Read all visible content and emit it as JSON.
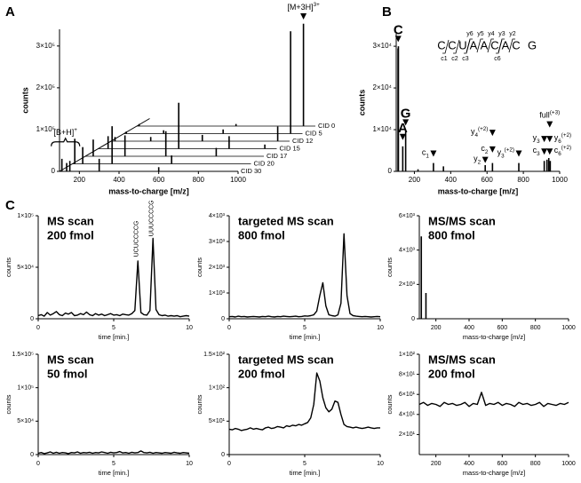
{
  "chart_data": [
    {
      "type": "waterfall",
      "panel": "A",
      "ylabel": "counts",
      "xlabel": "mass-to-charge [m/z]",
      "color": "#000000",
      "xlim": [
        100,
        1000
      ],
      "xticks": [
        200,
        400,
        600,
        800,
        1000
      ],
      "ylim": [
        0,
        340000
      ],
      "yticks": [
        0,
        {
          "value": 100000,
          "label": "1×10⁵"
        },
        {
          "value": 200000,
          "label": "2×10⁵"
        },
        {
          "value": 300000,
          "label": "3×10⁵"
        }
      ],
      "series": [
        {
          "name": "CID 0",
          "x": [
            112,
            600,
            940
          ],
          "values": [
            5000,
            5000,
            245000
          ],
          "annotation": {
            "text": "[M+3H]",
            "sup": "3+",
            "x": 940,
            "y": 255000,
            "marker": "triangle"
          }
        },
        {
          "name": "CID 5",
          "x": [
            112,
            300,
            600,
            940
          ],
          "values": [
            5000,
            8000,
            10000,
            245000
          ]
        },
        {
          "name": "CID 12",
          "x": [
            120,
            300,
            560,
            940
          ],
          "values": [
            10000,
            10000,
            15000,
            35000
          ]
        },
        {
          "name": "CID 15",
          "x": [
            150,
            506,
            760,
            940
          ],
          "values": [
            30000,
            110000,
            30000,
            10000
          ]
        },
        {
          "name": "CID 17",
          "x": [
            140,
            300,
            506,
            760
          ],
          "values": [
            40000,
            50000,
            60000,
            20000
          ]
        },
        {
          "name": "CID 20",
          "x": [
            112,
            152,
            300,
            600
          ],
          "values": [
            60000,
            40000,
            90000,
            20000
          ]
        },
        {
          "name": "CID 30",
          "x": [
            112,
            136,
            152,
            300,
            600
          ],
          "values": [
            30000,
            20000,
            25000,
            30000,
            10000
          ],
          "annotation": {
            "text": "[B+H]",
            "sup": "+",
            "x": 130,
            "y": 60000,
            "marker": "brace"
          }
        }
      ]
    },
    {
      "type": "spectrum",
      "panel": "B",
      "ylabel": "counts",
      "xlabel": "mass-to-charge [m/z]",
      "color": "#000000",
      "xlim": [
        100,
        1000
      ],
      "xticks": [
        200,
        400,
        600,
        800,
        1000
      ],
      "ylim": [
        0,
        33000
      ],
      "yticks": [
        0,
        {
          "value": 10000,
          "label": "1×10⁴"
        },
        {
          "value": 20000,
          "label": "2×10⁴"
        },
        {
          "value": 30000,
          "label": "3×10⁴"
        }
      ],
      "x": [
        110,
        112,
        136,
        152,
        220,
        305,
        360,
        590,
        630,
        775,
        915,
        930,
        940,
        948
      ],
      "values": [
        29500,
        30000,
        6000,
        9500,
        500,
        2000,
        1200,
        1500,
        2000,
        2000,
        2500,
        2800,
        3200,
        2500
      ],
      "annotations": [
        {
          "text": "C",
          "x": 111,
          "y": 31000
        },
        {
          "text": "G",
          "x": 152,
          "y": 11000
        },
        {
          "text": "A",
          "x": 136,
          "y": 7500
        },
        {
          "text": "c",
          "sub": "1",
          "x": 305,
          "y": 3500
        },
        {
          "text": "y",
          "sub": "2",
          "x": 590,
          "y": 2000
        },
        {
          "text": "c",
          "sub": "2",
          "x": 630,
          "y": 4500
        },
        {
          "text": "y",
          "sub": "4",
          "sup": "(+2)",
          "x": 630,
          "y": 8500
        },
        {
          "text": "y",
          "sub": "3",
          "sup": "(+2)",
          "x": 775,
          "y": 3500
        },
        {
          "text": "y",
          "sub": "3",
          "x": 915,
          "y": 7000
        },
        {
          "text": "c",
          "sub": "3",
          "x": 915,
          "y": 4000
        },
        {
          "text": "y",
          "sub": "6",
          "sup": "(+2)",
          "x": 945,
          "y": 7000
        },
        {
          "text": "c",
          "sub": "6",
          "sup": "(+2)",
          "x": 945,
          "y": 4000
        },
        {
          "text": "full",
          "sup": "(+3)",
          "x": 945,
          "y": 10500
        }
      ],
      "sequence": {
        "letters": [
          "C",
          "C",
          "U",
          "A",
          "A",
          "C",
          "A",
          "C",
          "G"
        ],
        "top": [
          "y6",
          "y5",
          "y4",
          "y3",
          "y2"
        ],
        "bottom": [
          "c1",
          "c2",
          "c3",
          "c6"
        ]
      }
    },
    {
      "type": "line",
      "panel": "C",
      "title": "MS scan",
      "subtitle": "200 fmol",
      "ylabel": "counts",
      "xlabel": "time [min.]",
      "color": "#000000",
      "xlim": [
        0,
        10
      ],
      "xticks": [
        0,
        5,
        10
      ],
      "ylim": [
        0,
        100000
      ],
      "yticks": [
        0,
        {
          "value": 50000,
          "label": "5×10⁴"
        },
        {
          "value": 100000,
          "label": "1×10⁵"
        }
      ],
      "x": [
        0,
        0.2,
        0.4,
        0.6,
        0.8,
        1,
        1.2,
        1.4,
        1.6,
        1.8,
        2,
        2.2,
        2.4,
        2.6,
        2.8,
        3,
        3.2,
        3.4,
        3.6,
        3.8,
        4,
        4.2,
        4.4,
        4.6,
        4.8,
        5,
        5.2,
        5.4,
        5.6,
        5.8,
        6,
        6.2,
        6.4,
        6.6,
        6.8,
        7,
        7.2,
        7.4,
        7.6,
        7.8,
        8,
        8.2,
        8.4,
        8.6,
        8.8,
        9,
        9.2,
        9.4,
        9.6,
        9.8,
        10
      ],
      "values": [
        3000,
        4000,
        2500,
        6000,
        3500,
        5000,
        7000,
        4000,
        3000,
        5500,
        4500,
        6000,
        3000,
        3500,
        5000,
        4000,
        6500,
        4000,
        3000,
        5000,
        3500,
        4500,
        3000,
        4000,
        5000,
        3500,
        4000,
        3000,
        4500,
        4000,
        3500,
        5000,
        8000,
        56000,
        6000,
        4000,
        3500,
        8000,
        78000,
        9000,
        4000,
        3000,
        3500,
        2500,
        3000,
        2500,
        3000,
        2000,
        2500,
        3000,
        2500
      ],
      "annotations": [
        {
          "text": "UCUCCCCG",
          "x": 6.5,
          "y": 60000
        },
        {
          "text": "UUUCCCCG",
          "x": 7.5,
          "y": 80000
        }
      ]
    },
    {
      "type": "line",
      "title": "targeted MS scan",
      "subtitle": "800 fmol",
      "ylabel": "counts",
      "xlabel": "time [min.]",
      "color": "#000000",
      "xlim": [
        0,
        10
      ],
      "xticks": [
        0,
        5,
        10
      ],
      "ylim": [
        0,
        4000
      ],
      "yticks": [
        0,
        {
          "value": 1000,
          "label": "1×10³"
        },
        {
          "value": 2000,
          "label": "2×10³"
        },
        {
          "value": 3000,
          "label": "3×10³"
        },
        {
          "value": 4000,
          "label": "4×10³"
        }
      ],
      "x": [
        0,
        0.2,
        0.4,
        0.6,
        0.8,
        1,
        1.2,
        1.4,
        1.6,
        1.8,
        2,
        2.2,
        2.4,
        2.6,
        2.8,
        3,
        3.2,
        3.4,
        3.6,
        3.8,
        4,
        4.2,
        4.4,
        4.6,
        4.8,
        5,
        5.2,
        5.4,
        5.6,
        5.8,
        6,
        6.2,
        6.4,
        6.6,
        6.8,
        7,
        7.2,
        7.4,
        7.6,
        7.8,
        8,
        8.2,
        8.4,
        8.6,
        8.8,
        9,
        9.2,
        9.4,
        9.6,
        9.8,
        10
      ],
      "values": [
        80,
        90,
        70,
        100,
        80,
        90,
        70,
        80,
        90,
        80,
        70,
        90,
        80,
        100,
        80,
        70,
        90,
        80,
        100,
        90,
        80,
        90,
        100,
        80,
        90,
        110,
        100,
        120,
        150,
        300,
        900,
        1400,
        500,
        150,
        120,
        100,
        150,
        600,
        3300,
        900,
        200,
        120,
        100,
        90,
        80,
        90,
        80,
        70,
        80,
        90,
        80
      ]
    },
    {
      "type": "spectrum",
      "title": "MS/MS scan",
      "subtitle": "800 fmol",
      "ylabel": "counts",
      "xlabel": "mass-to-charge [m/z]",
      "color": "#000000",
      "xlim": [
        100,
        1000
      ],
      "xticks": [
        200,
        400,
        600,
        800,
        1000
      ],
      "ylim": [
        0,
        6000
      ],
      "yticks": [
        0,
        {
          "value": 2000,
          "label": "2×10³"
        },
        {
          "value": 4000,
          "label": "4×10³"
        },
        {
          "value": 6000,
          "label": "6×10³"
        }
      ],
      "x": [
        112,
        140
      ],
      "values": [
        4800,
        1500
      ]
    },
    {
      "type": "line",
      "title": "MS scan",
      "subtitle": "50 fmol",
      "ylabel": "counts",
      "xlabel": "time [min.]",
      "color": "#000000",
      "xlim": [
        0,
        10
      ],
      "xticks": [
        0,
        5,
        10
      ],
      "ylim": [
        0,
        150000
      ],
      "yticks": [
        0,
        {
          "value": 50000,
          "label": "5×10⁴"
        },
        {
          "value": 100000,
          "label": "1×10⁵"
        },
        {
          "value": 150000,
          "label": "1.5×10⁵"
        }
      ],
      "x": [
        0,
        0.2,
        0.4,
        0.6,
        0.8,
        1,
        1.2,
        1.4,
        1.6,
        1.8,
        2,
        2.2,
        2.4,
        2.6,
        2.8,
        3,
        3.2,
        3.4,
        3.6,
        3.8,
        4,
        4.2,
        4.4,
        4.6,
        4.8,
        5,
        5.2,
        5.4,
        5.6,
        5.8,
        6,
        6.2,
        6.4,
        6.6,
        6.8,
        7,
        7.2,
        7.4,
        7.6,
        7.8,
        8,
        8.2,
        8.4,
        8.6,
        8.8,
        9,
        9.2,
        9.4,
        9.6,
        9.8,
        10
      ],
      "values": [
        2000,
        3000,
        1500,
        2500,
        4000,
        2000,
        3500,
        2000,
        3000,
        2500,
        1500,
        3000,
        2500,
        4000,
        2000,
        3000,
        2500,
        3500,
        2000,
        3000,
        2500,
        4000,
        3000,
        2000,
        3500,
        2500,
        3000,
        4500,
        2500,
        3000,
        2000,
        3500,
        2500,
        3000,
        5500,
        3000,
        2500,
        3500,
        2000,
        3000,
        2500,
        2000,
        3000,
        2500,
        2000,
        3500,
        2500,
        2000,
        3000,
        2500,
        2000
      ]
    },
    {
      "type": "line",
      "title": "targeted MS scan",
      "subtitle": "200 fmol",
      "ylabel": "counts",
      "xlabel": "time [min.]",
      "color": "#000000",
      "xlim": [
        0,
        10
      ],
      "xticks": [
        0,
        5,
        10
      ],
      "ylim": [
        0,
        150
      ],
      "yticks": [
        0,
        {
          "value": 50,
          "label": "5×10¹"
        },
        {
          "value": 100,
          "label": "1×10²"
        },
        {
          "value": 150,
          "label": "1.5×10²"
        }
      ],
      "x": [
        0,
        0.2,
        0.4,
        0.6,
        0.8,
        1,
        1.2,
        1.4,
        1.6,
        1.8,
        2,
        2.2,
        2.4,
        2.6,
        2.8,
        3,
        3.2,
        3.4,
        3.6,
        3.8,
        4,
        4.2,
        4.4,
        4.6,
        4.8,
        5,
        5.2,
        5.4,
        5.6,
        5.8,
        6,
        6.2,
        6.4,
        6.6,
        6.8,
        7,
        7.2,
        7.4,
        7.6,
        7.8,
        8,
        8.2,
        8.4,
        8.6,
        8.8,
        9,
        9.2,
        9.4,
        9.6,
        9.8,
        10
      ],
      "values": [
        38,
        37,
        39,
        38,
        36,
        37,
        38,
        40,
        38,
        39,
        38,
        37,
        40,
        41,
        39,
        40,
        42,
        41,
        40,
        43,
        42,
        44,
        43,
        45,
        44,
        46,
        48,
        55,
        75,
        122,
        110,
        85,
        70,
        64,
        68,
        80,
        78,
        60,
        45,
        42,
        41,
        40,
        41,
        40,
        39,
        40,
        41,
        40,
        39,
        40,
        40
      ]
    },
    {
      "type": "line",
      "title": "MS/MS scan",
      "subtitle": "200 fmol",
      "ylabel": "counts",
      "xlabel": "mass-to-charge [m/z]",
      "color": "#000000",
      "xlim": [
        100,
        1000
      ],
      "xticks": [
        200,
        400,
        600,
        800,
        1000
      ],
      "ylim": [
        0,
        100
      ],
      "yticks": [
        {
          "value": 20,
          "label": "2×10¹"
        },
        {
          "value": 40,
          "label": "4×10¹"
        },
        {
          "value": 60,
          "label": "6×10¹"
        },
        {
          "value": 80,
          "label": "8×10¹"
        },
        {
          "value": 100,
          "label": "1×10²"
        }
      ],
      "x": [
        100,
        125,
        150,
        175,
        200,
        225,
        250,
        275,
        300,
        325,
        350,
        375,
        400,
        425,
        450,
        475,
        500,
        525,
        550,
        575,
        600,
        625,
        650,
        675,
        700,
        725,
        750,
        775,
        800,
        825,
        850,
        875,
        900,
        925,
        950,
        975,
        1000
      ],
      "values": [
        50,
        52,
        49,
        51,
        50,
        48,
        52,
        50,
        51,
        49,
        50,
        52,
        48,
        51,
        50,
        62,
        49,
        51,
        50,
        52,
        49,
        51,
        50,
        48,
        52,
        50,
        51,
        49,
        50,
        52,
        48,
        51,
        50,
        49,
        51,
        50,
        52
      ]
    }
  ]
}
